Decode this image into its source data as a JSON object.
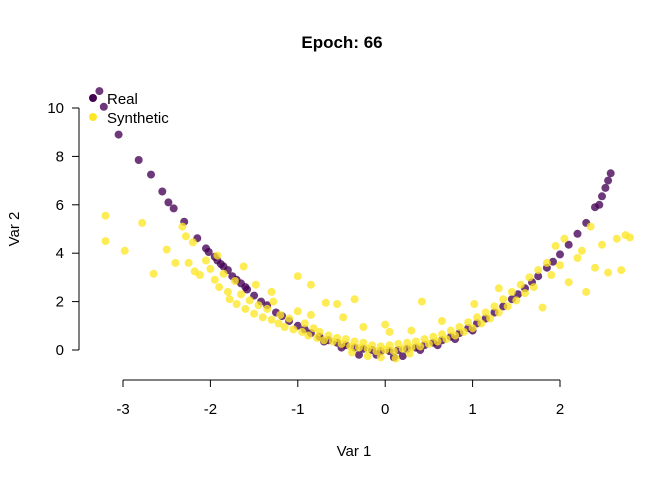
{
  "chart_data": {
    "type": "scatter",
    "title": "Epoch: 66",
    "xlabel": "Var 1",
    "ylabel": "Var 2",
    "xlim": [
      -3.0,
      2.8
    ],
    "ylim": [
      -0.6,
      11.0
    ],
    "xticks": [
      -3,
      -2,
      -1,
      0,
      1,
      2
    ],
    "xtick_labels": [
      "-3",
      "-2",
      "-1",
      "0",
      "1",
      "2"
    ],
    "yticks": [
      0,
      2,
      4,
      6,
      8,
      10
    ],
    "ytick_labels": [
      "0",
      "2",
      "4",
      "6",
      "8",
      "10"
    ],
    "legend": {
      "placement": "top-left",
      "entries": [
        {
          "label": "Real",
          "color": "#440154"
        },
        {
          "label": "Synthetic",
          "color": "#FDE725"
        }
      ]
    },
    "grid": false,
    "series": [
      {
        "name": "Real",
        "color": "#440154",
        "points": [
          [
            -3.27,
            10.7
          ],
          [
            -3.22,
            10.05
          ],
          [
            -3.05,
            8.9
          ],
          [
            -2.82,
            7.85
          ],
          [
            -2.68,
            7.25
          ],
          [
            -2.55,
            6.55
          ],
          [
            -2.48,
            6.1
          ],
          [
            -2.42,
            5.85
          ],
          [
            -2.3,
            5.3
          ],
          [
            -2.15,
            4.62
          ],
          [
            -2.05,
            4.2
          ],
          [
            -2.02,
            4.05
          ],
          [
            -1.95,
            3.85
          ],
          [
            -1.92,
            3.7
          ],
          [
            -1.88,
            3.55
          ],
          [
            -1.85,
            3.45
          ],
          [
            -1.75,
            3.05
          ],
          [
            -1.7,
            2.9
          ],
          [
            -1.65,
            2.75
          ],
          [
            -1.58,
            2.5
          ],
          [
            -1.5,
            2.25
          ],
          [
            -1.42,
            2.0
          ],
          [
            -1.35,
            1.85
          ],
          [
            -1.25,
            1.55
          ],
          [
            -1.18,
            1.4
          ],
          [
            -1.1,
            1.2
          ],
          [
            -1.0,
            1.0
          ],
          [
            -0.92,
            0.85
          ],
          [
            -0.85,
            0.7
          ],
          [
            -0.75,
            0.55
          ],
          [
            -0.65,
            0.4
          ],
          [
            -0.55,
            0.3
          ],
          [
            -0.45,
            0.2
          ],
          [
            -0.35,
            0.1
          ],
          [
            -0.25,
            0.05
          ],
          [
            -0.15,
            0.0
          ],
          [
            -0.05,
            -0.05
          ],
          [
            0.05,
            -0.05
          ],
          [
            0.15,
            0.0
          ],
          [
            0.25,
            0.05
          ],
          [
            0.35,
            0.1
          ],
          [
            0.45,
            0.2
          ],
          [
            0.55,
            0.3
          ],
          [
            0.65,
            0.4
          ],
          [
            0.75,
            0.55
          ],
          [
            0.85,
            0.7
          ],
          [
            0.95,
            0.9
          ],
          [
            1.05,
            1.1
          ],
          [
            1.15,
            1.3
          ],
          [
            1.25,
            1.55
          ],
          [
            1.35,
            1.8
          ],
          [
            1.45,
            2.1
          ],
          [
            1.52,
            2.3
          ],
          [
            1.6,
            2.55
          ],
          [
            1.68,
            2.8
          ],
          [
            1.75,
            3.05
          ],
          [
            1.85,
            3.4
          ],
          [
            1.92,
            3.65
          ],
          [
            2.0,
            3.95
          ],
          [
            2.1,
            4.35
          ],
          [
            2.2,
            4.8
          ],
          [
            2.3,
            5.25
          ],
          [
            2.4,
            5.9
          ],
          [
            2.45,
            6.0
          ],
          [
            2.48,
            6.35
          ],
          [
            2.52,
            6.7
          ],
          [
            2.55,
            7.0
          ],
          [
            2.58,
            7.3
          ],
          [
            -1.8,
            3.3
          ],
          [
            -1.6,
            2.6
          ],
          [
            -0.3,
            -0.2
          ],
          [
            0.2,
            -0.25
          ],
          [
            0.1,
            -0.3
          ],
          [
            -0.1,
            -0.2
          ],
          [
            0.4,
            0.0
          ],
          [
            -0.5,
            0.1
          ],
          [
            0.6,
            0.2
          ],
          [
            -0.7,
            0.35
          ],
          [
            0.8,
            0.45
          ],
          [
            1.0,
            0.8
          ]
        ]
      },
      {
        "name": "Synthetic",
        "color": "#FDE725",
        "points": [
          [
            -3.2,
            5.55
          ],
          [
            -3.2,
            4.5
          ],
          [
            -2.98,
            4.1
          ],
          [
            -2.78,
            5.25
          ],
          [
            -2.65,
            3.15
          ],
          [
            -2.5,
            4.15
          ],
          [
            -2.4,
            3.6
          ],
          [
            -2.32,
            5.1
          ],
          [
            -2.28,
            4.7
          ],
          [
            -2.2,
            4.45
          ],
          [
            -2.25,
            3.6
          ],
          [
            -2.18,
            3.25
          ],
          [
            -2.12,
            3.1
          ],
          [
            -2.05,
            3.7
          ],
          [
            -2.0,
            3.35
          ],
          [
            -1.95,
            2.9
          ],
          [
            -1.92,
            3.9
          ],
          [
            -1.9,
            2.6
          ],
          [
            -1.85,
            3.15
          ],
          [
            -1.8,
            2.4
          ],
          [
            -1.78,
            2.1
          ],
          [
            -1.72,
            2.85
          ],
          [
            -1.7,
            1.9
          ],
          [
            -1.65,
            2.3
          ],
          [
            -1.6,
            1.7
          ],
          [
            -1.55,
            2.05
          ],
          [
            -1.5,
            1.5
          ],
          [
            -1.48,
            2.7
          ],
          [
            -1.45,
            1.85
          ],
          [
            -1.4,
            1.35
          ],
          [
            -1.35,
            1.7
          ],
          [
            -1.3,
            1.25
          ],
          [
            -1.28,
            2.0
          ],
          [
            -1.22,
            1.1
          ],
          [
            -1.2,
            1.45
          ],
          [
            -1.15,
            0.95
          ],
          [
            -1.1,
            1.3
          ],
          [
            -1.05,
            0.85
          ],
          [
            -1.0,
            1.6
          ],
          [
            -0.95,
            0.75
          ],
          [
            -0.92,
            1.1
          ],
          [
            -0.88,
            0.6
          ],
          [
            -0.85,
            2.7
          ],
          [
            -0.82,
            0.9
          ],
          [
            -0.78,
            0.5
          ],
          [
            -0.75,
            0.75
          ],
          [
            -0.7,
            0.4
          ],
          [
            -0.68,
            1.95
          ],
          [
            -0.65,
            0.6
          ],
          [
            -0.6,
            0.35
          ],
          [
            -0.55,
            0.5
          ],
          [
            -0.5,
            0.25
          ],
          [
            -0.48,
            1.35
          ],
          [
            -0.45,
            0.45
          ],
          [
            -0.4,
            0.15
          ],
          [
            -0.35,
            2.1
          ],
          [
            -0.35,
            0.35
          ],
          [
            -0.3,
            0.1
          ],
          [
            -0.25,
            0.3
          ],
          [
            -0.2,
            0.05
          ],
          [
            -0.15,
            0.2
          ],
          [
            -0.1,
            -0.05
          ],
          [
            -0.05,
            0.15
          ],
          [
            0.0,
            0.0
          ],
          [
            0.0,
            1.05
          ],
          [
            0.05,
            0.2
          ],
          [
            0.1,
            -0.05
          ],
          [
            0.15,
            0.25
          ],
          [
            0.2,
            0.05
          ],
          [
            0.25,
            0.3
          ],
          [
            0.3,
            0.1
          ],
          [
            0.35,
            0.35
          ],
          [
            0.4,
            0.15
          ],
          [
            0.42,
            2.0
          ],
          [
            0.45,
            0.45
          ],
          [
            0.5,
            0.25
          ],
          [
            0.55,
            0.55
          ],
          [
            0.6,
            0.35
          ],
          [
            0.65,
            0.65
          ],
          [
            0.7,
            0.45
          ],
          [
            0.75,
            0.8
          ],
          [
            0.8,
            0.6
          ],
          [
            0.85,
            0.95
          ],
          [
            0.9,
            0.75
          ],
          [
            0.95,
            1.15
          ],
          [
            1.0,
            0.9
          ],
          [
            1.02,
            1.9
          ],
          [
            1.05,
            1.35
          ],
          [
            1.1,
            1.1
          ],
          [
            1.15,
            1.55
          ],
          [
            1.2,
            1.3
          ],
          [
            1.25,
            1.8
          ],
          [
            1.3,
            1.55
          ],
          [
            1.35,
            2.1
          ],
          [
            1.4,
            1.8
          ],
          [
            1.45,
            2.4
          ],
          [
            1.5,
            2.05
          ],
          [
            1.55,
            2.7
          ],
          [
            1.6,
            2.35
          ],
          [
            1.65,
            3.0
          ],
          [
            1.7,
            2.6
          ],
          [
            1.75,
            3.3
          ],
          [
            1.8,
            1.75
          ],
          [
            1.85,
            3.6
          ],
          [
            1.9,
            3.1
          ],
          [
            1.95,
            4.3
          ],
          [
            2.0,
            3.5
          ],
          [
            2.05,
            4.6
          ],
          [
            2.1,
            2.8
          ],
          [
            2.2,
            3.8
          ],
          [
            2.25,
            4.1
          ],
          [
            2.3,
            2.4
          ],
          [
            2.35,
            5.1
          ],
          [
            2.4,
            3.4
          ],
          [
            2.48,
            4.35
          ],
          [
            2.55,
            3.2
          ],
          [
            2.65,
            4.6
          ],
          [
            2.7,
            3.3
          ],
          [
            2.75,
            4.75
          ],
          [
            2.8,
            4.65
          ],
          [
            -1.62,
            3.45
          ],
          [
            -1.0,
            3.05
          ],
          [
            -0.55,
            1.9
          ],
          [
            0.05,
            0.75
          ],
          [
            -0.25,
            0.95
          ],
          [
            0.3,
            0.8
          ],
          [
            0.65,
            1.2
          ],
          [
            -0.85,
            1.45
          ],
          [
            -1.3,
            2.4
          ],
          [
            1.3,
            2.55
          ],
          [
            -0.05,
            -0.3
          ],
          [
            0.12,
            -0.35
          ],
          [
            -0.2,
            -0.25
          ],
          [
            0.28,
            -0.15
          ],
          [
            -0.38,
            -0.1
          ]
        ]
      }
    ]
  }
}
